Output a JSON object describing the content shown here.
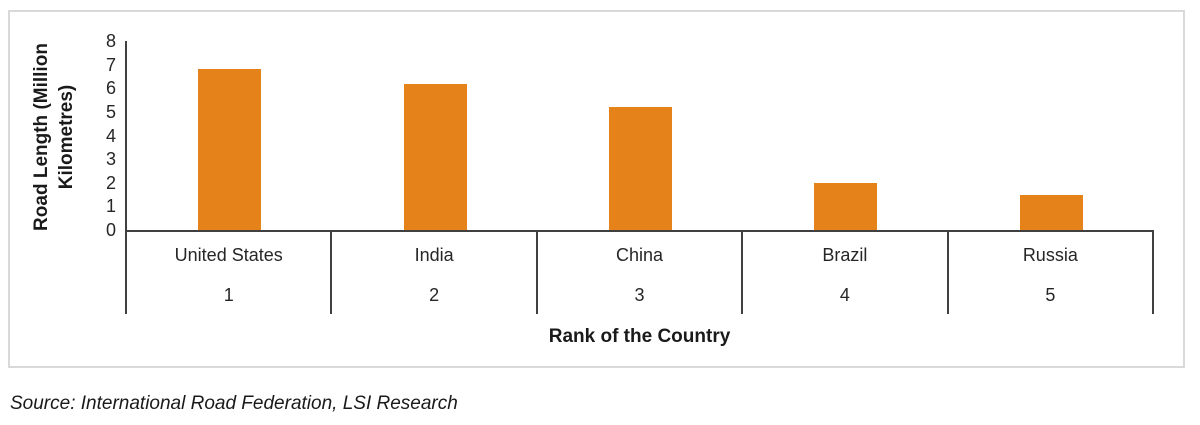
{
  "chart_data": {
    "type": "bar",
    "title": "",
    "categories": [
      "United States",
      "India",
      "China",
      "Brazil",
      "Russia"
    ],
    "ranks": [
      "1",
      "2",
      "3",
      "4",
      "5"
    ],
    "values": [
      6.8,
      6.2,
      5.2,
      2.0,
      1.5
    ],
    "series": [
      {
        "name": "Road Length",
        "values": [
          6.8,
          6.2,
          5.2,
          2.0,
          1.5
        ]
      }
    ],
    "xlabel": "Rank of the Country",
    "ylabel": "Road Length (Million Kilometres)",
    "ylabel_lines": [
      "Road Length (Million",
      "Kilometres)"
    ],
    "ylim": [
      0,
      8
    ],
    "yticks": [
      0,
      1,
      2,
      3,
      4,
      5,
      6,
      7,
      8
    ],
    "grid": false,
    "legend_position": "none",
    "bar_color": "#E5831A",
    "axis_color": "#404040",
    "frame_border_color": "#D9D9D9"
  },
  "source_note": "Source: International Road Federation, LSI Research"
}
